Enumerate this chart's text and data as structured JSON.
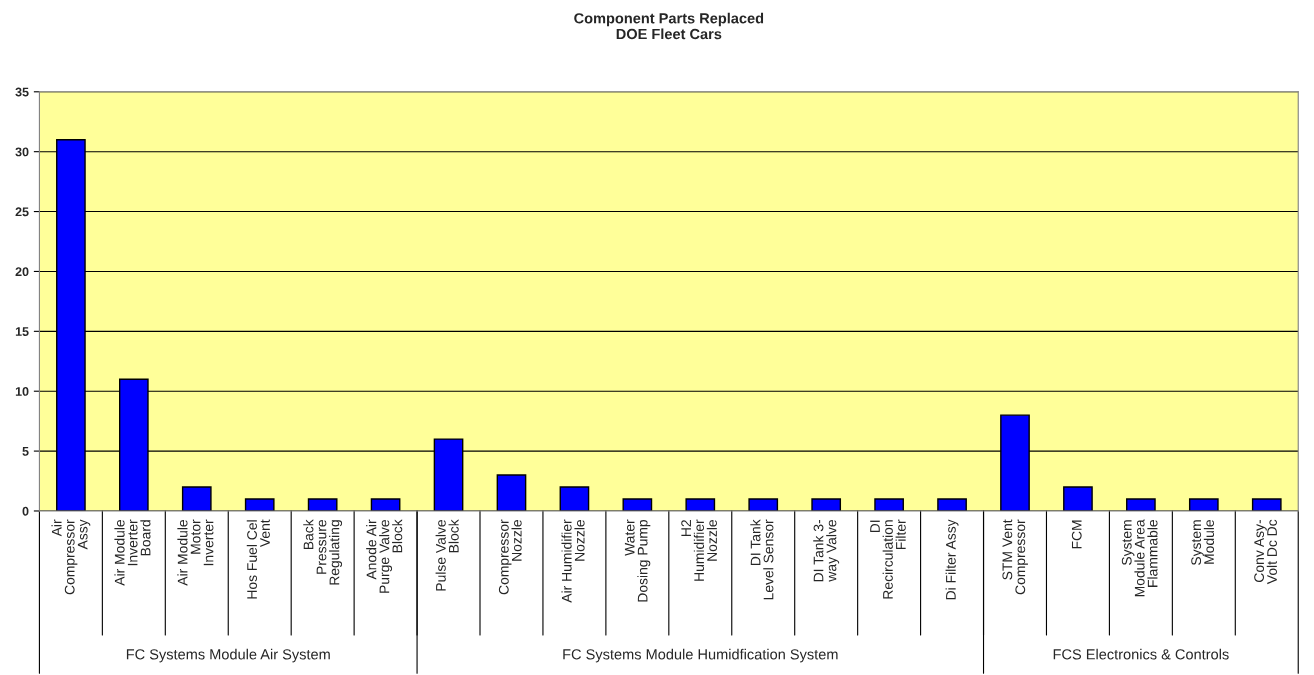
{
  "chart_data": {
    "type": "bar",
    "title": "Component Parts Replaced\nDOE Fleet Cars",
    "categories": [
      "Air\nCompressor\nAssy",
      "Air Module\nInverter\nBoard",
      "Air Module\nMotor\nInverter",
      "Hos Fuel Cel\nVent",
      "Back\nPressure\nRegulating",
      "Anode Air\nPurge Valve\nBlock",
      "Pulse Valve\nBlock",
      "Compressor\nNozzle",
      "Air Humidifier\nNozzle",
      "Water\nDosing Pump",
      "H2\nHumidifier\nNozzle",
      "DI Tank\nLevel Sensor",
      "DI Tank 3-\nway Valve",
      "DI\nRecirculation\nFilter",
      "Di Filter Assy",
      "STM Vent\nCompressor",
      "FCM",
      "System\nModule Area\nFlammable",
      "System\nModule",
      "Conv Asy-\nVolt Dc Dc"
    ],
    "values": [
      31,
      11,
      2,
      1,
      1,
      1,
      6,
      3,
      2,
      1,
      1,
      1,
      1,
      1,
      1,
      8,
      2,
      1,
      1,
      1
    ],
    "color": "#0000ff",
    "ylim": [
      0,
      35
    ],
    "yticks": [
      0,
      5,
      10,
      15,
      20,
      25,
      30,
      35
    ],
    "grid": "y",
    "annotations": [
      "FC Systems Module Air System",
      "FC Systems Module Humidfication System",
      "FCS Electronics & Controls"
    ]
  }
}
